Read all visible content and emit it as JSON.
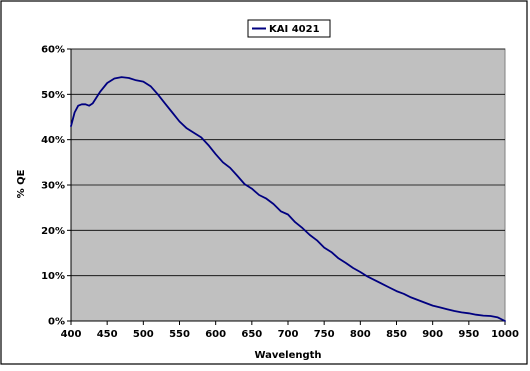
{
  "chart_data": {
    "type": "line",
    "title": "",
    "xlabel": "Wavelength",
    "ylabel": "% QE",
    "xlim": [
      400,
      1000
    ],
    "ylim": [
      0,
      60
    ],
    "x_ticks": [
      "400",
      "450",
      "500",
      "550",
      "600",
      "650",
      "700",
      "750",
      "800",
      "850",
      "900",
      "950",
      "1000"
    ],
    "y_ticks": [
      "0%",
      "10%",
      "20%",
      "30%",
      "40%",
      "50%",
      "60%"
    ],
    "grid": "horizontal",
    "legend_position": "top-center",
    "plot_background": "#c0c0c0",
    "series": [
      {
        "name": "KAI 4021",
        "color": "#000080",
        "points": [
          [
            400,
            43
          ],
          [
            405,
            46
          ],
          [
            410,
            47.5
          ],
          [
            415,
            47.8
          ],
          [
            420,
            47.8
          ],
          [
            425,
            47.5
          ],
          [
            430,
            48
          ],
          [
            440,
            50.5
          ],
          [
            450,
            52.5
          ],
          [
            460,
            53.5
          ],
          [
            470,
            53.8
          ],
          [
            480,
            53.6
          ],
          [
            490,
            53.1
          ],
          [
            500,
            52.8
          ],
          [
            510,
            51.8
          ],
          [
            520,
            50
          ],
          [
            530,
            48
          ],
          [
            540,
            46
          ],
          [
            550,
            44
          ],
          [
            560,
            42.5
          ],
          [
            570,
            41.5
          ],
          [
            580,
            40.5
          ],
          [
            590,
            38.8
          ],
          [
            600,
            36.8
          ],
          [
            610,
            35
          ],
          [
            620,
            33.8
          ],
          [
            630,
            32
          ],
          [
            640,
            30.2
          ],
          [
            650,
            29.2
          ],
          [
            660,
            27.8
          ],
          [
            670,
            27
          ],
          [
            680,
            25.8
          ],
          [
            690,
            24.2
          ],
          [
            700,
            23.5
          ],
          [
            710,
            21.8
          ],
          [
            720,
            20.5
          ],
          [
            730,
            19
          ],
          [
            740,
            17.8
          ],
          [
            750,
            16.2
          ],
          [
            760,
            15.2
          ],
          [
            770,
            13.8
          ],
          [
            780,
            12.8
          ],
          [
            790,
            11.7
          ],
          [
            800,
            10.8
          ],
          [
            810,
            9.8
          ],
          [
            820,
            9
          ],
          [
            830,
            8.2
          ],
          [
            840,
            7.4
          ],
          [
            850,
            6.6
          ],
          [
            860,
            6
          ],
          [
            870,
            5.2
          ],
          [
            880,
            4.6
          ],
          [
            890,
            4
          ],
          [
            900,
            3.4
          ],
          [
            910,
            3
          ],
          [
            920,
            2.6
          ],
          [
            930,
            2.2
          ],
          [
            940,
            1.9
          ],
          [
            950,
            1.7
          ],
          [
            960,
            1.4
          ],
          [
            970,
            1.2
          ],
          [
            980,
            1.1
          ],
          [
            990,
            0.8
          ],
          [
            1000,
            0
          ]
        ]
      }
    ]
  }
}
